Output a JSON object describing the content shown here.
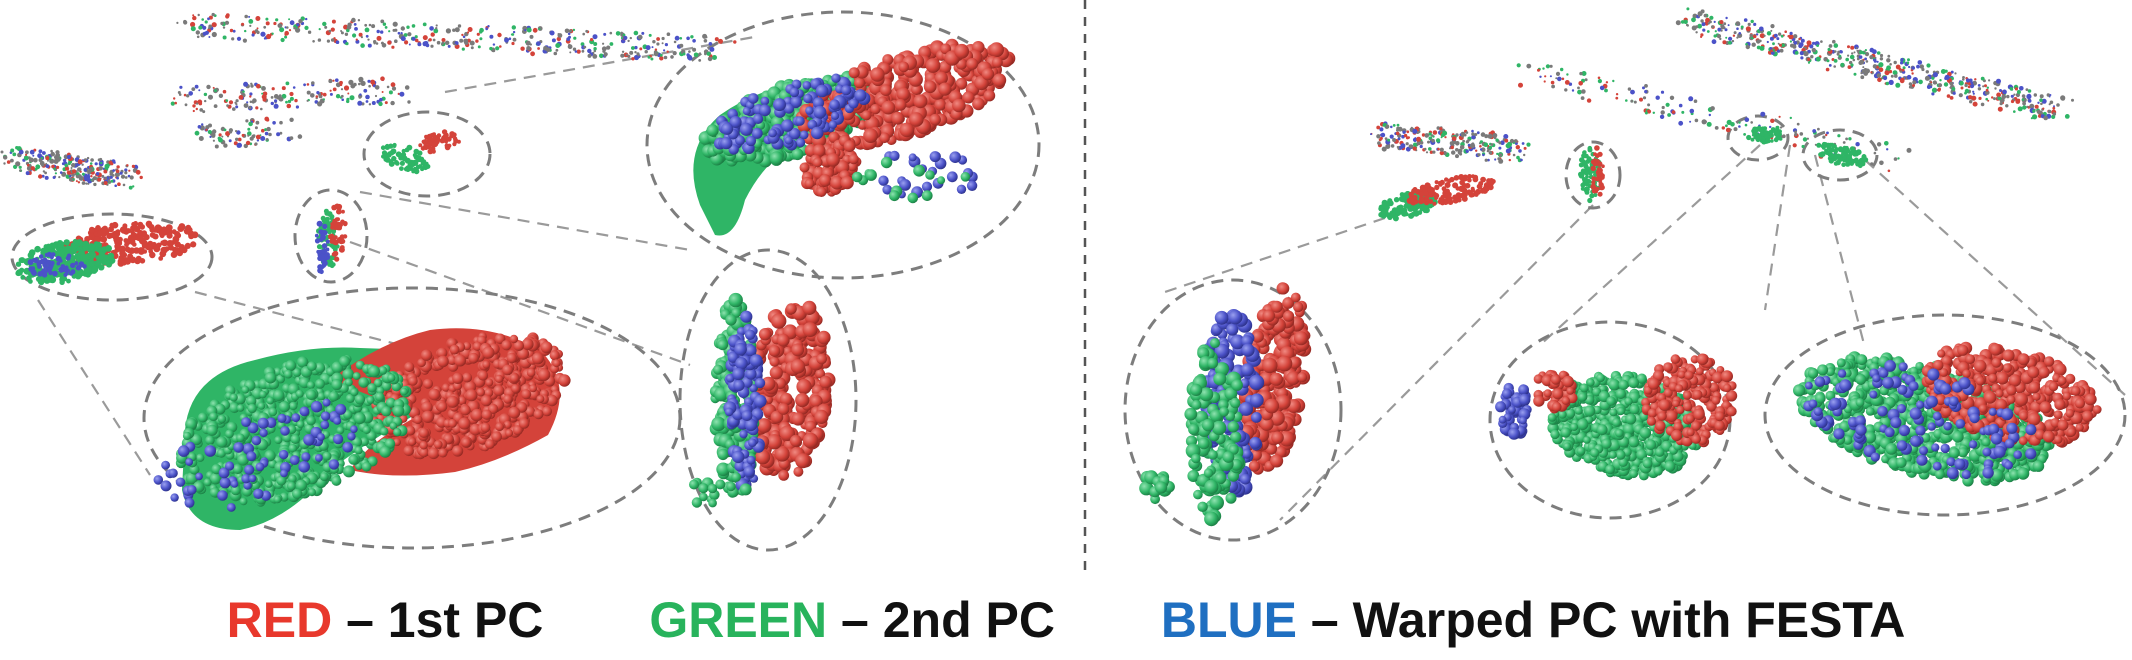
{
  "colors": {
    "red": "#d4433a",
    "green": "#2fb566",
    "blue": "#4b52c8",
    "legend_red": "#e8382c",
    "legend_green": "#28b35c",
    "legend_blue": "#1f6fc1",
    "scan_gray": "#7a7a7a",
    "ellipse_stroke": "#7d7d7d"
  },
  "legend": [
    {
      "key": "RED",
      "desc": " – 1st PC",
      "color_ref": "legend_red"
    },
    {
      "key": "GREEN",
      "desc": " – 2nd PC",
      "color_ref": "legend_green"
    },
    {
      "key": "BLUE",
      "desc": " – Warped PC with FESTA",
      "color_ref": "legend_blue"
    }
  ]
}
